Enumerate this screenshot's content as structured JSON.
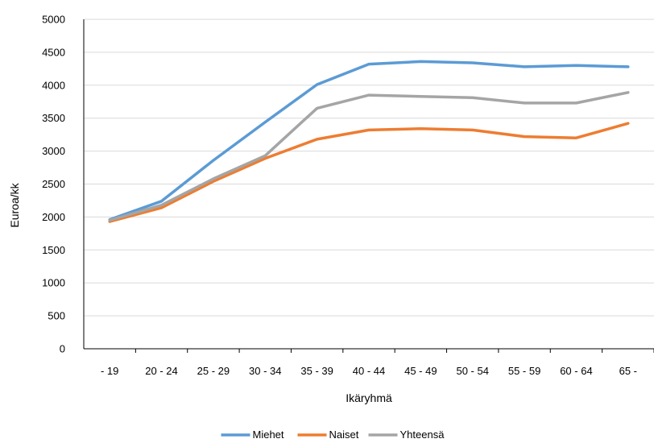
{
  "chart_data": {
    "type": "line",
    "title": "",
    "xlabel": "Ikäryhmä",
    "ylabel": "Euroa/kk",
    "ylim": [
      0,
      5000
    ],
    "yticks": [
      0,
      500,
      1000,
      1500,
      2000,
      2500,
      3000,
      3500,
      4000,
      4500,
      5000
    ],
    "grid": "horizontal",
    "legend_position": "bottom",
    "categories": [
      "- 19",
      "20 - 24",
      "25 - 29",
      "30 - 34",
      "35 - 39",
      "40 - 44",
      "45 - 49",
      "50 - 54",
      "55 - 59",
      "60 - 64",
      "65 -"
    ],
    "series": [
      {
        "name": "Miehet",
        "color": "#5B9BD5",
        "values": [
          1960,
          2240,
          2860,
          3440,
          4010,
          4320,
          4360,
          4340,
          4280,
          4300,
          4280
        ]
      },
      {
        "name": "Naiset",
        "color": "#ED7D31",
        "values": [
          1930,
          2140,
          2540,
          2890,
          3180,
          3320,
          3340,
          3320,
          3220,
          3200,
          3420
        ]
      },
      {
        "name": "Yhteensä",
        "color": "#A5A5A5",
        "values": [
          1950,
          2180,
          2580,
          2930,
          3650,
          3850,
          3830,
          3810,
          3730,
          3730,
          3890
        ]
      }
    ]
  }
}
